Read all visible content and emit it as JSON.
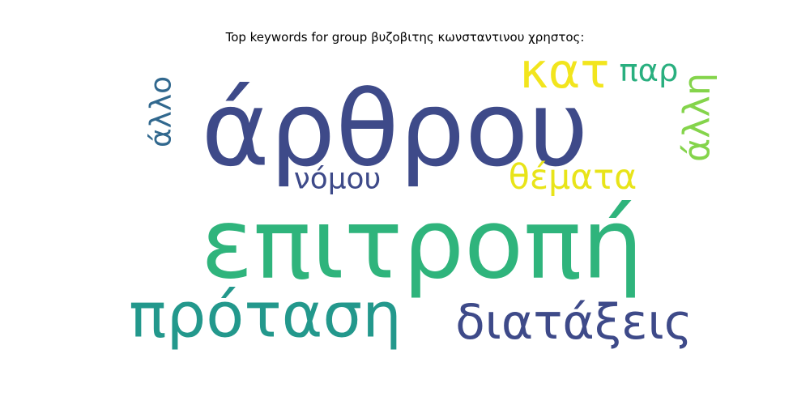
{
  "chart_data": {
    "type": "wordcloud",
    "title": "Top keywords for group βυζοβιτης κωνσταντινου χρηστος:",
    "words": [
      {
        "text": "επιτροπή",
        "weight": 1.0,
        "color": "#2fb47c"
      },
      {
        "text": "άρθρου",
        "weight": 0.78,
        "color": "#3e4a89"
      },
      {
        "text": "πρόταση",
        "weight": 0.56,
        "color": "#23988c"
      },
      {
        "text": "διατάξεις",
        "weight": 0.5,
        "color": "#3e4a89"
      },
      {
        "text": "κατ",
        "weight": 0.46,
        "color": "#f2e51d"
      },
      {
        "text": "παρ",
        "weight": 0.25,
        "color": "#29af7f"
      },
      {
        "text": "νόμου",
        "weight": 0.24,
        "color": "#3e4a89"
      },
      {
        "text": "θέματα",
        "weight": 0.24,
        "color": "#e8e419"
      },
      {
        "text": "άλλο",
        "weight": 0.24,
        "color": "#31688e"
      },
      {
        "text": "άλλη",
        "weight": 0.22,
        "color": "#84d44b"
      }
    ]
  }
}
